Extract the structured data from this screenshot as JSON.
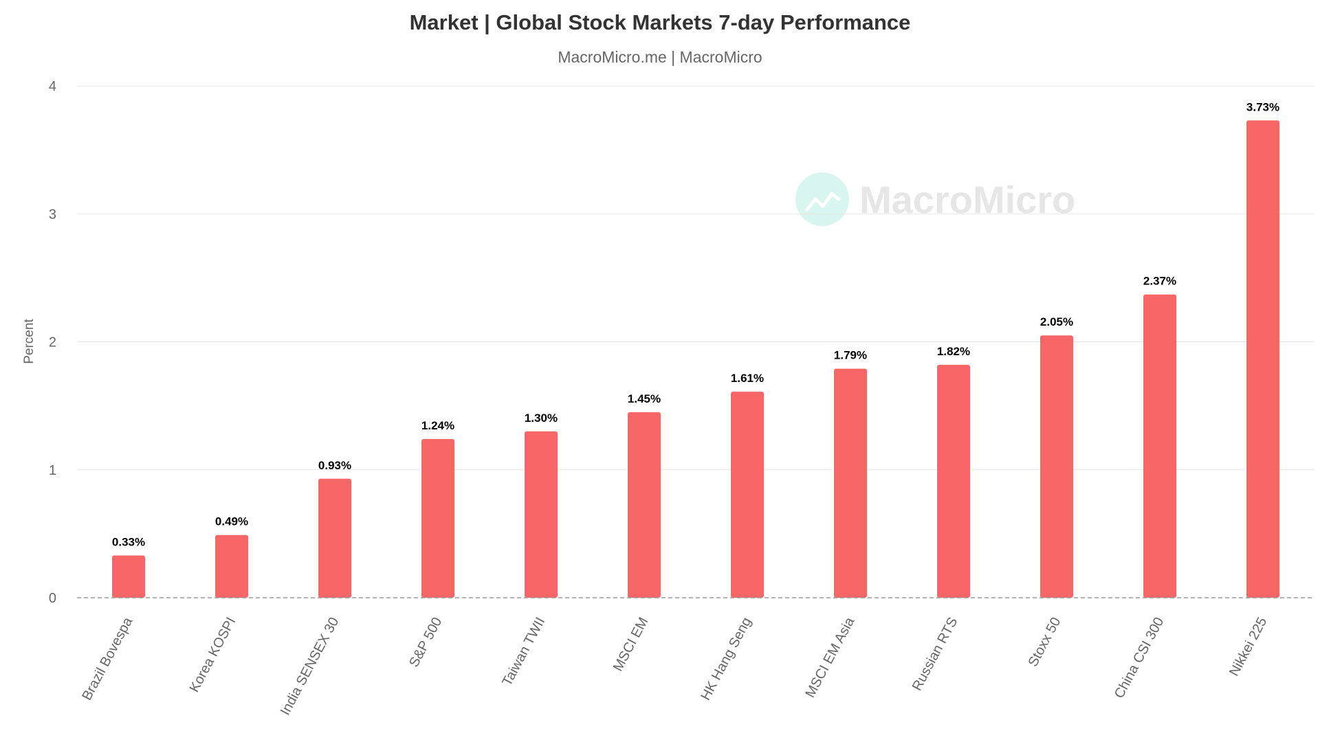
{
  "chart_data": {
    "type": "bar",
    "title": "Market | Global Stock Markets 7-day Performance",
    "subtitle": "MacroMicro.me | MacroMicro",
    "ylabel": "Percent",
    "xlabel": "",
    "ylim": [
      0,
      4
    ],
    "yticks": [
      0,
      1,
      2,
      3,
      4
    ],
    "ytick_labels": [
      "0",
      "1",
      "2",
      "3",
      "4"
    ],
    "grid": true,
    "legend": "none",
    "watermark": "MacroMicro",
    "bar_color": "#f76767",
    "categories": [
      "Brazil Bovespa",
      "Korea KOSPI",
      "India SENSEX 30",
      "S&P 500",
      "Taiwan TWII",
      "MSCI EM",
      "HK Hang Seng",
      "MSCI EM Asia",
      "Russian RTS",
      "Stoxx 50",
      "China CSI 300",
      "Nikkei 225"
    ],
    "values": [
      0.33,
      0.49,
      0.93,
      1.24,
      1.3,
      1.45,
      1.61,
      1.79,
      1.82,
      2.05,
      2.37,
      3.73
    ],
    "data_labels": [
      "0.33%",
      "0.49%",
      "0.93%",
      "1.24%",
      "1.30%",
      "1.45%",
      "1.61%",
      "1.79%",
      "1.82%",
      "2.05%",
      "2.37%",
      "3.73%"
    ]
  }
}
